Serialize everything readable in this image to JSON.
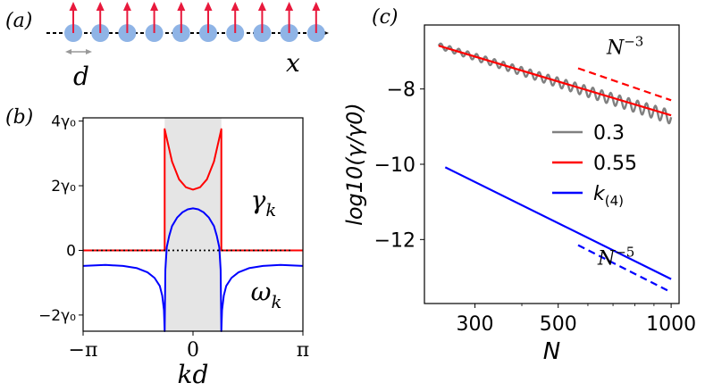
{
  "figure": {
    "panel_a": {
      "label": "(a)",
      "spacing_label": "d",
      "axis_label": "x",
      "num_atoms": 10,
      "colors": {
        "atom": "#8fb4e6",
        "dipole": "#e8193c",
        "axis": "#000000",
        "spacing": "#999999"
      }
    },
    "panel_b": {
      "label": "(b)"
    },
    "panel_c": {
      "label": "(c)"
    }
  },
  "chart_data": [
    {
      "id": "b",
      "type": "line",
      "xlabel": "kd",
      "ylabel": "",
      "xlim": [
        -3.1416,
        3.1416
      ],
      "ylim": [
        -2.5,
        4.1
      ],
      "xticks": [
        {
          "value": -3.1416,
          "label": "−π"
        },
        {
          "value": 0,
          "label": "0"
        },
        {
          "value": 3.1416,
          "label": "π"
        }
      ],
      "yticks": [
        {
          "value": 4,
          "label": "4γ₀"
        },
        {
          "value": 2,
          "label": "2γ₀"
        },
        {
          "value": 0,
          "label": "0"
        },
        {
          "value": -2,
          "label": "−2γ₀"
        }
      ],
      "shaded_region": {
        "x_from": -0.81,
        "x_to": 0.81,
        "color": "#e5e5e5"
      },
      "zero_line": {
        "y": 0,
        "style": "dotted",
        "color": "#000000"
      },
      "series": [
        {
          "name": "γ_k",
          "color": "#ff0000",
          "x": [
            -3.14,
            -0.81,
            -0.81,
            -0.6,
            -0.4,
            -0.2,
            0,
            0.2,
            0.4,
            0.6,
            0.81,
            0.81,
            3.14
          ],
          "y": [
            0,
            0,
            3.75,
            2.75,
            2.2,
            1.95,
            1.88,
            1.95,
            2.2,
            2.75,
            3.75,
            0,
            0
          ]
        },
        {
          "name": "ω_k",
          "color": "#0000ff",
          "x": [
            -3.14,
            -2.5,
            -2.0,
            -1.6,
            -1.3,
            -1.1,
            -0.95,
            -0.88,
            -0.83,
            -0.81,
            -0.81,
            -0.79,
            -0.75,
            -0.68,
            -0.6,
            -0.45,
            -0.3,
            -0.15,
            0,
            0.15,
            0.3,
            0.45,
            0.6,
            0.68,
            0.75,
            0.79,
            0.81,
            0.81,
            0.83,
            0.88,
            0.95,
            1.1,
            1.3,
            1.6,
            2.0,
            2.5,
            3.14
          ],
          "y": [
            -0.48,
            -0.45,
            -0.48,
            -0.55,
            -0.68,
            -0.85,
            -1.1,
            -1.4,
            -1.85,
            -2.5,
            -2.5,
            -0.6,
            0.1,
            0.45,
            0.75,
            1.02,
            1.18,
            1.27,
            1.3,
            1.27,
            1.18,
            1.02,
            0.75,
            0.45,
            0.1,
            -0.6,
            -2.5,
            -2.5,
            -1.85,
            -1.4,
            -1.1,
            -0.85,
            -0.68,
            -0.55,
            -0.48,
            -0.45,
            -0.48
          ]
        }
      ],
      "annotations": [
        {
          "text": "γ",
          "sub": "k",
          "x": 1.65,
          "y": 1.3,
          "color": "#000000"
        },
        {
          "text": "ω",
          "sub": "k",
          "x": 1.65,
          "y": -1.55,
          "color": "#000000"
        }
      ]
    },
    {
      "id": "c",
      "type": "line",
      "xscale": "log",
      "xlabel": "N",
      "ylabel": "log10(γ/γ0)",
      "xlim": [
        220,
        1050
      ],
      "ylim": [
        -13.7,
        -6.3
      ],
      "xticks": [
        {
          "value": 300,
          "label": "300"
        },
        {
          "value": 500,
          "label": "500"
        },
        {
          "value": 1000,
          "label": "1000"
        }
      ],
      "yticks": [
        {
          "value": -8,
          "label": "−8"
        },
        {
          "value": -10,
          "label": "−10"
        },
        {
          "value": -12,
          "label": "−12"
        }
      ],
      "series": [
        {
          "name": "0.3",
          "color": "#808080",
          "oscillating": true,
          "x_start": 240,
          "x_end": 1000,
          "y_start": -6.85,
          "y_end": -8.75,
          "oscillation_amplitude": 0.18,
          "oscillation_cycles": 26
        },
        {
          "name": "0.55",
          "color": "#ff0000",
          "x": [
            240,
            1000
          ],
          "y": [
            -6.85,
            -8.7
          ]
        },
        {
          "name": "k(4)",
          "color": "#0000ff",
          "x": [
            250,
            1000
          ],
          "y": [
            -10.08,
            -13.05
          ]
        }
      ],
      "reference_lines": [
        {
          "label": "N",
          "exponent": "−3",
          "color": "#ff0000",
          "dashed": true,
          "x": [
            565,
            1000
          ],
          "y": [
            -7.45,
            -8.3
          ]
        },
        {
          "label": "N",
          "exponent": "−5",
          "color": "#0000ff",
          "dashed": true,
          "x": [
            565,
            1000
          ],
          "y": [
            -12.15,
            -13.4
          ]
        }
      ],
      "legend": {
        "position": "right",
        "entries": [
          {
            "label": "0.3",
            "color": "#808080"
          },
          {
            "label": "0.55",
            "color": "#ff0000"
          },
          {
            "label": "k",
            "sub": "(4)",
            "color": "#0000ff"
          }
        ]
      }
    }
  ]
}
